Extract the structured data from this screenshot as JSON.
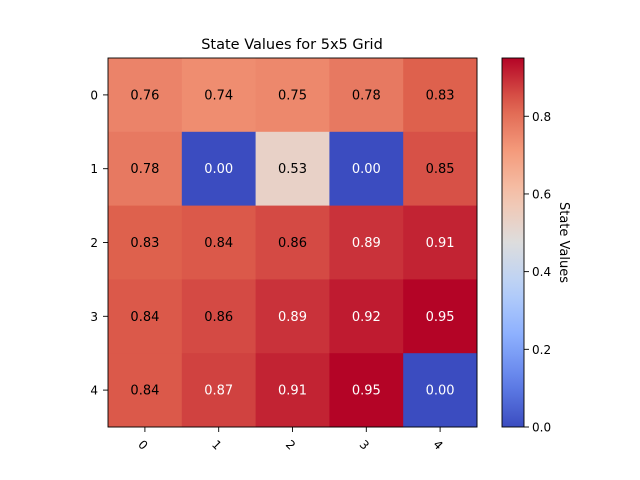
{
  "chart_data": {
    "type": "heatmap",
    "title": "State Values for 5x5 Grid",
    "xlabel": "",
    "ylabel": "",
    "x_categories": [
      "0",
      "1",
      "2",
      "3",
      "4"
    ],
    "y_categories": [
      "0",
      "1",
      "2",
      "3",
      "4"
    ],
    "values": [
      [
        0.76,
        0.74,
        0.75,
        0.78,
        0.83
      ],
      [
        0.78,
        0.0,
        0.53,
        0.0,
        0.85
      ],
      [
        0.83,
        0.84,
        0.86,
        0.89,
        0.91
      ],
      [
        0.84,
        0.86,
        0.89,
        0.92,
        0.95
      ],
      [
        0.84,
        0.87,
        0.91,
        0.95,
        0.0
      ]
    ],
    "value_labels": [
      [
        "0.76",
        "0.74",
        "0.75",
        "0.78",
        "0.83"
      ],
      [
        "0.78",
        "0.00",
        "0.53",
        "0.00",
        "0.85"
      ],
      [
        "0.83",
        "0.84",
        "0.86",
        "0.89",
        "0.91"
      ],
      [
        "0.84",
        "0.86",
        "0.89",
        "0.92",
        "0.95"
      ],
      [
        "0.84",
        "0.87",
        "0.91",
        "0.95",
        "0.00"
      ]
    ],
    "colormap": "coolwarm",
    "vmin": 0.0,
    "vmax": 0.95,
    "colorbar": {
      "label": "State Values",
      "ticks": [
        "0.0",
        "0.2",
        "0.4",
        "0.6",
        "0.8"
      ],
      "tick_values": [
        0.0,
        0.2,
        0.4,
        0.6,
        0.8
      ]
    },
    "grid": false,
    "x_tick_rotation_deg": 45
  }
}
